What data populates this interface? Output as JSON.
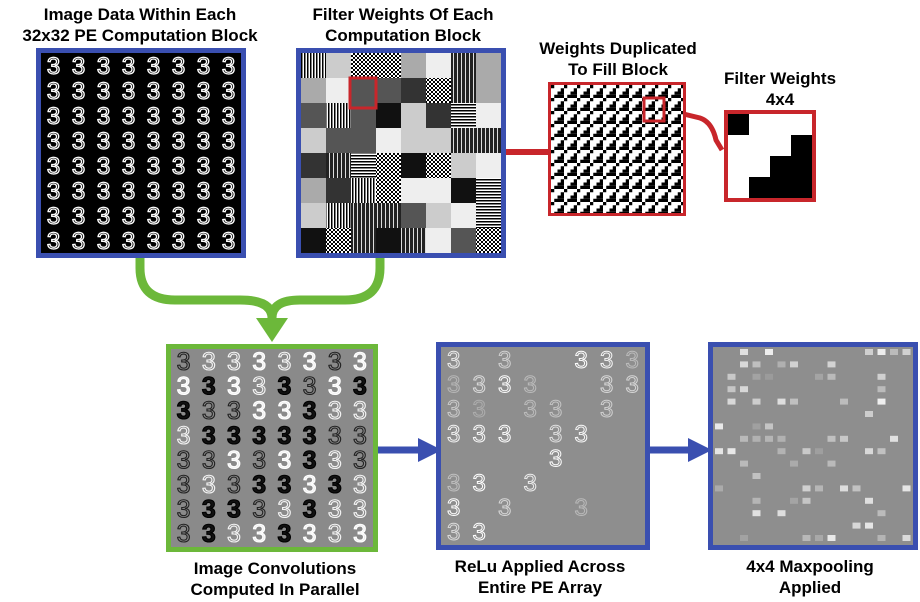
{
  "labels": {
    "image_data": [
      "Image Data Within Each",
      "32x32 PE Computation Block"
    ],
    "filter_weights": [
      "Filter Weights Of Each",
      "Computation Block"
    ],
    "weights_duplicated": [
      "Weights Duplicated",
      "To Fill Block"
    ],
    "filter_4x4": [
      "Filter Weights",
      "4x4"
    ],
    "convolutions": [
      "Image Convolutions",
      "Computed In Parallel"
    ],
    "relu": [
      "ReLu Applied Across",
      "Entire PE Array"
    ],
    "maxpool": [
      "4x4 Maxpooling",
      "Applied"
    ]
  },
  "digit_glyph": "3",
  "colors": {
    "blue_border": "#3a4fb0",
    "red": "#c8262b",
    "green": "#6cb83a",
    "gray_panel": "#8a8a8a"
  },
  "filter_4x4_pattern": [
    [
      1,
      0,
      0,
      0
    ],
    [
      0,
      0,
      0,
      1
    ],
    [
      0,
      0,
      1,
      1
    ],
    [
      0,
      1,
      1,
      1
    ]
  ]
}
